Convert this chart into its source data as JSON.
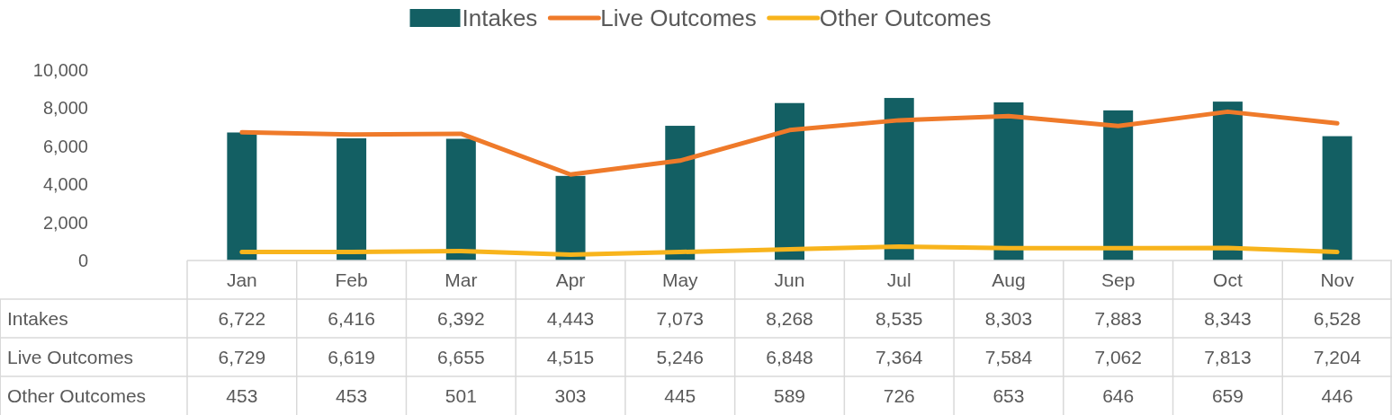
{
  "chart_data": {
    "type": "bar",
    "categories": [
      "Jan",
      "Feb",
      "Mar",
      "Apr",
      "May",
      "Jun",
      "Jul",
      "Aug",
      "Sep",
      "Oct",
      "Nov"
    ],
    "series": [
      {
        "name": "Intakes",
        "color": "#135f63",
        "values": [
          6722,
          6416,
          6392,
          4443,
          7073,
          8268,
          8535,
          8303,
          7883,
          8343,
          6528
        ],
        "value_labels": [
          "6,722",
          "6,416",
          "6,392",
          "4,443",
          "7,073",
          "8,268",
          "8,535",
          "8,303",
          "7,883",
          "8,343",
          "6,528"
        ]
      },
      {
        "name": "Live Outcomes",
        "type": "line",
        "color": "#ef7a2a",
        "values": [
          6729,
          6619,
          6655,
          4515,
          5246,
          6848,
          7364,
          7584,
          7062,
          7813,
          7204
        ],
        "value_labels": [
          "6,729",
          "6,619",
          "6,655",
          "4,515",
          "5,246",
          "6,848",
          "7,364",
          "7,584",
          "7,062",
          "7,813",
          "7,204"
        ]
      },
      {
        "name": "Other Outcomes",
        "type": "line",
        "color": "#f8b41c",
        "values": [
          453,
          453,
          501,
          303,
          445,
          589,
          726,
          653,
          646,
          659,
          446
        ],
        "value_labels": [
          "453",
          "453",
          "501",
          "303",
          "445",
          "589",
          "726",
          "653",
          "646",
          "659",
          "446"
        ]
      }
    ],
    "ylim": [
      0,
      10000
    ],
    "yticks": [
      0,
      {
        "value": 2000,
        "label": "2,000"
      },
      {
        "value": 4000,
        "label": "4,000"
      },
      {
        "value": 6000,
        "label": "6,000"
      },
      {
        "value": 8000,
        "label": "8,000"
      },
      {
        "value": 10000,
        "label": "10,000"
      }
    ],
    "legend": "top"
  }
}
